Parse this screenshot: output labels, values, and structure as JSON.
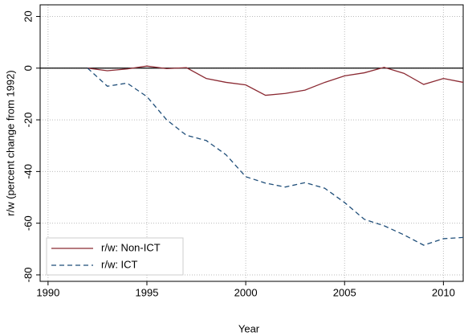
{
  "chart_data": {
    "type": "line",
    "x_label": "Year",
    "y_label": "r/w (percent change from 1992)",
    "x": [
      1992,
      1993,
      1994,
      1995,
      1996,
      1997,
      1998,
      1999,
      2000,
      2001,
      2002,
      2003,
      2004,
      2005,
      2006,
      2007,
      2008,
      2009,
      2010,
      2011
    ],
    "series": [
      {
        "name": "r/w: Non-ICT",
        "color": "#8b2a33",
        "style": "solid",
        "values": [
          0,
          -1,
          -0.3,
          0.8,
          -0.2,
          0.2,
          -4,
          -5.5,
          -6.5,
          -10.5,
          -9.8,
          -8.5,
          -5.5,
          -3,
          -1.8,
          0.3,
          -2,
          -6.3,
          -4,
          -5.5
        ]
      },
      {
        "name": "r/w: ICT",
        "color": "#1f4e79",
        "style": "dashed",
        "values": [
          0,
          -7,
          -5.8,
          -11,
          -20,
          -26,
          -28,
          -33.5,
          -42,
          -44.5,
          -46,
          -44.3,
          -46.5,
          -52,
          -58.5,
          -61,
          -64.5,
          -68.5,
          -66,
          -65.5
        ]
      }
    ],
    "xlim": [
      1989.6,
      2011
    ],
    "xticks": [
      1990,
      1995,
      2000,
      2005,
      2010
    ],
    "ylim": [
      -82.5,
      24.5
    ],
    "yticks": [
      -80,
      -60,
      -40,
      -20,
      0,
      20
    ],
    "reference_line": 0,
    "grid": true,
    "legend_position": "lower-left"
  }
}
